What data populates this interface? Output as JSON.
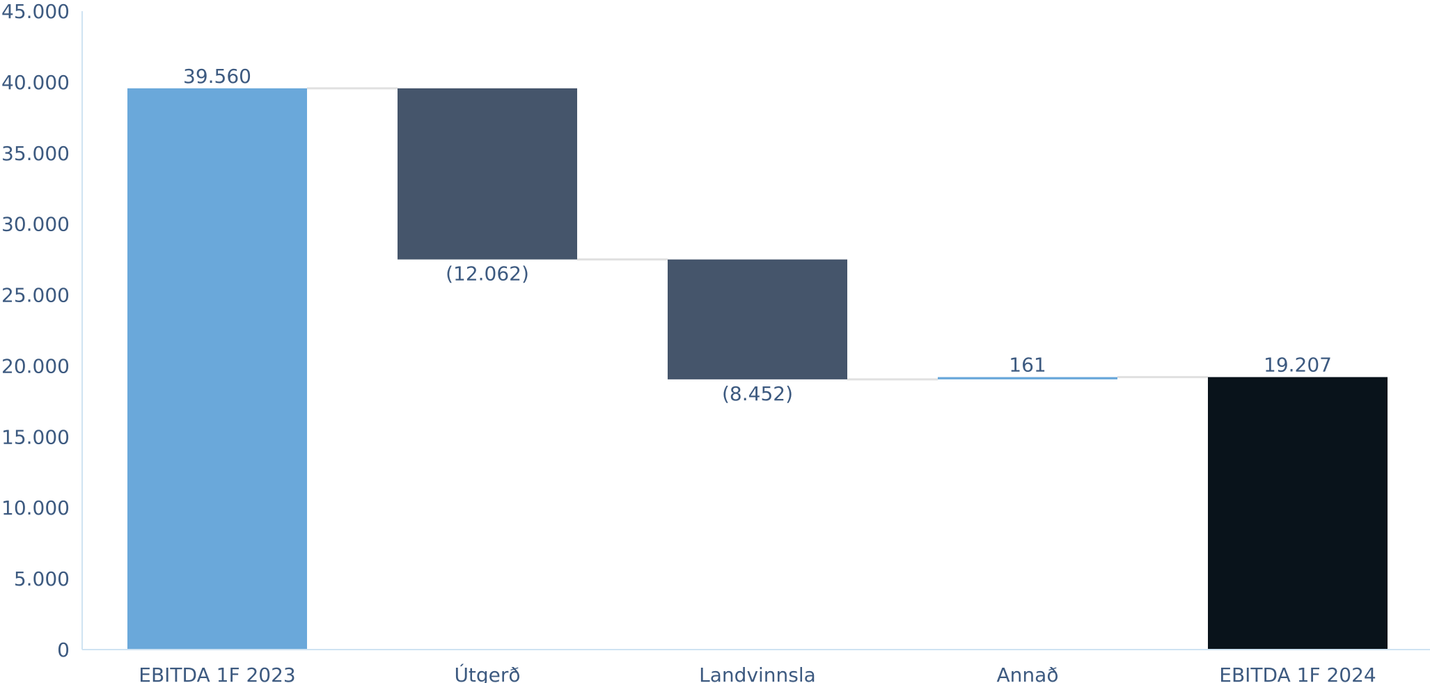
{
  "chart_data": {
    "type": "bar",
    "subtype": "waterfall",
    "title": "",
    "xlabel": "",
    "ylabel": "",
    "ylim": [
      0,
      45000
    ],
    "y_ticks": [
      0,
      5000,
      10000,
      15000,
      20000,
      25000,
      30000,
      35000,
      40000,
      45000
    ],
    "y_tick_labels": [
      "0",
      "5.000",
      "10.000",
      "15.000",
      "20.000",
      "25.000",
      "30.000",
      "35.000",
      "40.000",
      "45.000"
    ],
    "grid": false,
    "legend": "none",
    "categories": [
      "EBITDA 1F 2023",
      "Útgerð",
      "Landvinnsla",
      "Annað",
      "EBITDA 1F 2024"
    ],
    "values": [
      39560,
      -12062,
      -8452,
      161,
      19207
    ],
    "value_labels": [
      "39.560",
      "(12.062)",
      "(8.452)",
      "161",
      "19.207"
    ],
    "bar_kinds": [
      "total",
      "delta",
      "delta",
      "delta",
      "total"
    ],
    "colors": {
      "start_total": "#6aa8da",
      "decrease": "#45556b",
      "increase": "#6aa8da",
      "end_total": "#09131b",
      "connector": "#e0e0e0",
      "axis": "#cfe3f2",
      "text": "#3d5a80"
    }
  }
}
